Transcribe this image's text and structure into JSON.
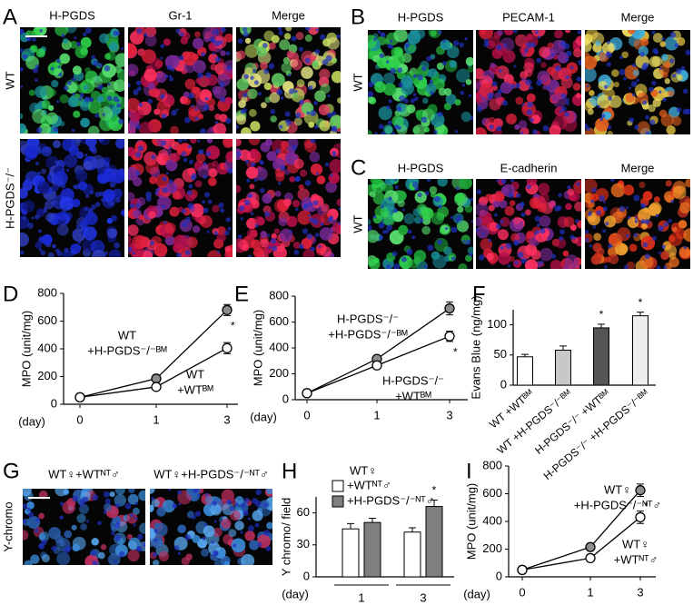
{
  "figure": {
    "panels": [
      {
        "letter": "A",
        "columns": [
          "H-PGDS",
          "Gr-1",
          "Merge"
        ],
        "rows": [
          "WT",
          "H-PGDS⁻/⁻"
        ]
      },
      {
        "letter": "B",
        "columns": [
          "H-PGDS",
          "PECAM-1",
          "Merge"
        ],
        "rows": [
          "WT"
        ]
      },
      {
        "letter": "C",
        "columns": [
          "H-PGDS",
          "E-cadherin",
          "Merge"
        ],
        "rows": [
          "WT"
        ]
      },
      {
        "letter": "G",
        "columns": [
          "WT♀+WTᴺᵀ♂",
          "WT♀+H-PGDS⁻/⁻ᴺᵀ♂"
        ],
        "rows": [
          "Y-chromo"
        ]
      }
    ]
  },
  "chart_data": [
    {
      "letter": "D",
      "type": "line",
      "ylabel": "MPO (unit/mg)",
      "xlabel": "(day)",
      "categories": [
        "0",
        "1",
        "3"
      ],
      "ylim": [
        0,
        800
      ],
      "yticks": [
        0,
        200,
        400,
        600,
        800
      ],
      "series": [
        {
          "label": [
            "WT",
            "+H-PGDS⁻/⁻ᴮᴹ"
          ],
          "color": "#8c8c8c",
          "values": [
            50,
            185,
            680
          ],
          "errors": [
            0,
            15,
            40
          ],
          "significance": [
            null,
            null,
            "*"
          ]
        },
        {
          "label": [
            "WT",
            "+WTᴮᴹ"
          ],
          "color": "#ffffff",
          "values": [
            50,
            125,
            405
          ],
          "errors": [
            0,
            10,
            40
          ]
        }
      ]
    },
    {
      "letter": "E",
      "type": "line",
      "ylabel": "MPO (unit/mg)",
      "xlabel": "(day)",
      "categories": [
        "0",
        "1",
        "3"
      ],
      "ylim": [
        0,
        800
      ],
      "yticks": [
        0,
        200,
        400,
        600,
        800
      ],
      "series": [
        {
          "label": [
            "H-PGDS⁻/⁻",
            "+H-PGDS⁻/⁻ᴮᴹ"
          ],
          "color": "#8c8c8c",
          "values": [
            50,
            315,
            705
          ],
          "errors": [
            0,
            15,
            50
          ]
        },
        {
          "label": [
            "H-PGDS⁻/⁻",
            "+WTᴮᴹ"
          ],
          "color": "#ffffff",
          "values": [
            50,
            265,
            490
          ],
          "errors": [
            0,
            15,
            40
          ],
          "significance": [
            null,
            null,
            "*"
          ]
        }
      ]
    },
    {
      "letter": "F",
      "type": "bar",
      "ylabel": "Evans Blue (ng/mg)",
      "categories": [
        "WT +WTᴮᴹ",
        "WT +H-PGDS⁻/⁻ᴮᴹ",
        "H-PGDS⁻/⁻ +WTᴮᴹ",
        "H-PGDS⁻/⁻ +H-PGDS⁻/⁻ᴮᴹ"
      ],
      "ylim": [
        0,
        125
      ],
      "yticks": [
        0,
        50,
        100
      ],
      "series": [
        {
          "colors": [
            "#ffffff",
            "#c8c8c8",
            "#555555",
            "#eeeeee"
          ],
          "values": [
            47,
            58,
            95,
            115
          ],
          "errors": [
            4,
            7,
            6,
            6
          ],
          "significance": [
            null,
            null,
            "*",
            "*"
          ]
        }
      ]
    },
    {
      "letter": "H",
      "type": "grouped-bar",
      "ylabel": "Y chromo/ field",
      "xlabel": "(day)",
      "legend_title": "WT♀",
      "categories": [
        "1",
        "3"
      ],
      "ylim": [
        0,
        75
      ],
      "yticks": [
        0,
        30,
        60
      ],
      "series": [
        {
          "name": "+WTᴺᵀ♂",
          "color": "#ffffff",
          "values": [
            45,
            42
          ],
          "errors": [
            5,
            4
          ]
        },
        {
          "name": "+H-PGDS⁻/⁻ᴺᵀ♂",
          "color": "#7f7f7f",
          "values": [
            51,
            66
          ],
          "errors": [
            4,
            6
          ],
          "significance": [
            null,
            "*"
          ]
        }
      ]
    },
    {
      "letter": "I",
      "type": "line",
      "ylabel": "MPO (unit/mg)",
      "xlabel": "(day)",
      "categories": [
        "0",
        "1",
        "3"
      ],
      "ylim": [
        0,
        800
      ],
      "yticks": [
        0,
        200,
        400,
        600,
        800
      ],
      "series": [
        {
          "label": [
            "WT♀",
            "+H-PGDS⁻/⁻ᴺᵀ♂"
          ],
          "color": "#8c8c8c",
          "values": [
            50,
            215,
            625
          ],
          "errors": [
            0,
            20,
            45
          ],
          "significance": [
            null,
            null,
            "*"
          ]
        },
        {
          "label": [
            "WT♀",
            "+WTᴺᵀ♂"
          ],
          "color": "#ffffff",
          "values": [
            50,
            135,
            430
          ],
          "errors": [
            0,
            15,
            45
          ]
        }
      ]
    }
  ]
}
